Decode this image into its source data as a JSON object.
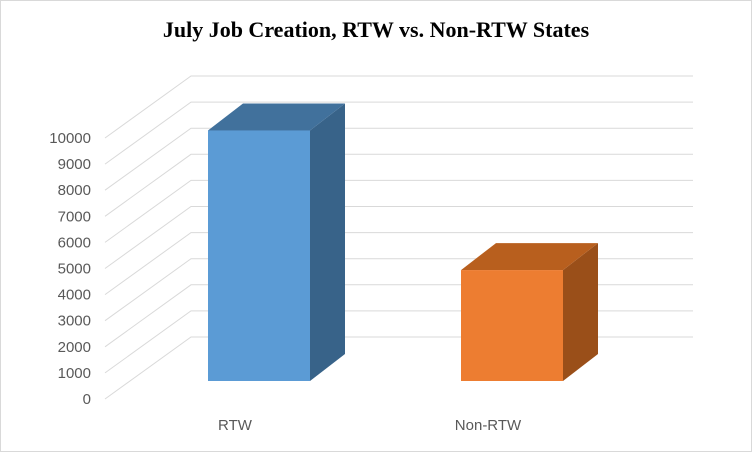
{
  "chart_data": {
    "type": "bar",
    "title": "July Job Creation,  RTW vs. Non-RTW  States",
    "categories": [
      "RTW",
      "Non-RTW"
    ],
    "values": [
      9600,
      4250
    ],
    "ylim": [
      0,
      10000
    ],
    "yticks": [
      0,
      1000,
      2000,
      3000,
      4000,
      5000,
      6000,
      7000,
      8000,
      9000,
      10000
    ],
    "xlabel": "",
    "ylabel": "",
    "grid": true,
    "style": "3d-column",
    "legend": "none",
    "colors": {
      "front": [
        "#5b9bd5",
        "#ed7d31"
      ],
      "top": [
        "#41719c",
        "#b85f1e"
      ],
      "side": [
        "#386389",
        "#9a4f19"
      ],
      "grid": "#d9d9d9",
      "text": "#595959"
    }
  }
}
